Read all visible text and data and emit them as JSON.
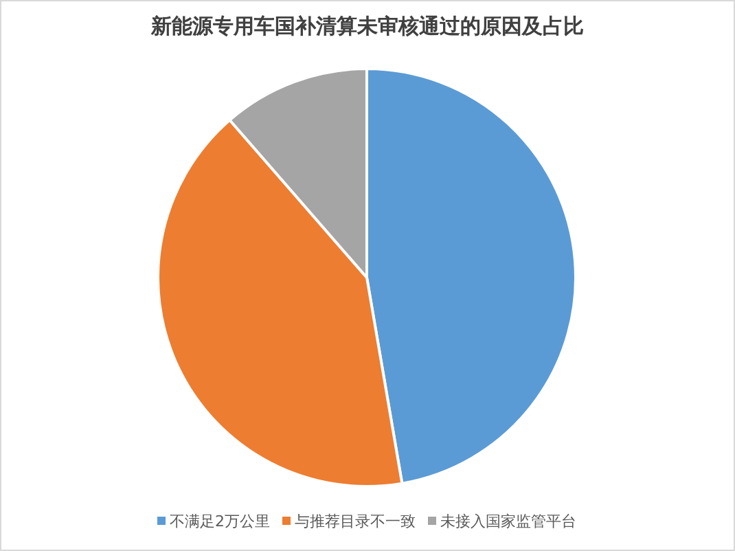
{
  "chart_data": {
    "type": "pie",
    "title": "新能源专用车国补清算未审核通过的原因及占比",
    "categories": [
      "不满足2万公里",
      "与推荐目录不一致",
      "未接入国家监管平台"
    ],
    "values": [
      47.3,
      41.3,
      11.4
    ],
    "colors": [
      "#5b9bd5",
      "#ed7d31",
      "#a5a5a5"
    ],
    "legend": "bottom"
  }
}
